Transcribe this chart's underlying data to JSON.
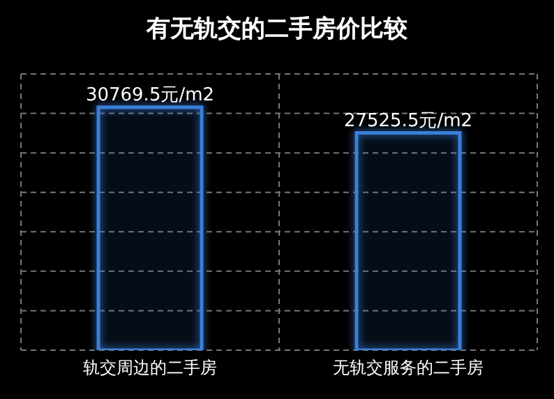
{
  "chart_data": {
    "type": "bar",
    "title": "有无轨交的二手房价比较",
    "categories": [
      "轨交周边的二手房",
      "无轨交服务的二手房"
    ],
    "values": [
      30769.5,
      27525.5
    ],
    "color": "#3a7fd8",
    "value_labels": [
      "30769.5元/m2",
      "27525.5元/m2"
    ],
    "ylim": [
      0,
      35000
    ],
    "yticks": [
      {
        "value": 0,
        "label": null
      },
      {
        "value": 5000,
        "label": null
      },
      {
        "value": 10000,
        "label": null
      },
      {
        "value": 15000,
        "label": null
      },
      {
        "value": 20000,
        "label": null
      },
      {
        "value": 25000,
        "label": null
      },
      {
        "value": 30000,
        "label": null
      },
      {
        "value": 35000,
        "label": null
      }
    ],
    "tick_labels": "x",
    "grid": true
  }
}
